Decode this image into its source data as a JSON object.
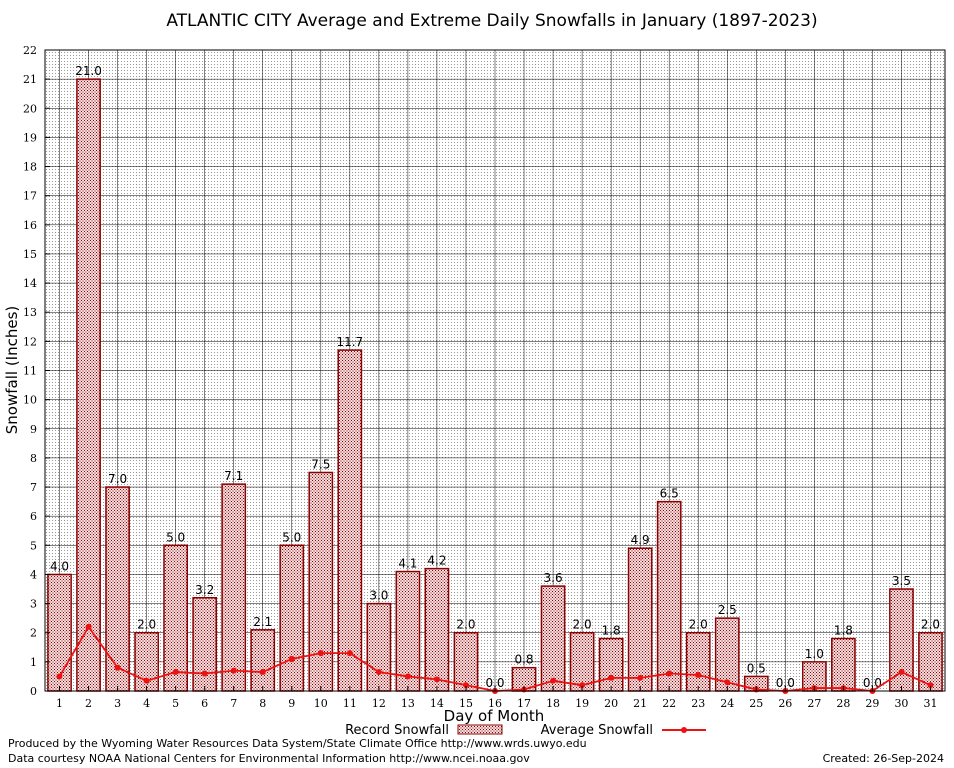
{
  "chart_data": {
    "type": "bar",
    "title": "ATLANTIC CITY Average and Extreme Daily Snowfalls in January (1897-2023)",
    "xlabel": "Day of Month",
    "ylabel": "Snowfall (Inches)",
    "ylim": [
      0,
      22
    ],
    "grid": true,
    "categories": [
      "1",
      "2",
      "3",
      "4",
      "5",
      "6",
      "7",
      "8",
      "9",
      "10",
      "11",
      "12",
      "13",
      "14",
      "15",
      "16",
      "17",
      "18",
      "19",
      "20",
      "21",
      "22",
      "23",
      "24",
      "25",
      "26",
      "27",
      "28",
      "29",
      "30",
      "31"
    ],
    "series": [
      {
        "name": "Record Snowfall",
        "type": "bar",
        "color": "#8b0000",
        "values": [
          4.0,
          21.0,
          7.0,
          2.0,
          5.0,
          3.2,
          7.1,
          2.1,
          5.0,
          7.5,
          11.7,
          3.0,
          4.1,
          4.2,
          2.0,
          0.0,
          0.8,
          3.6,
          2.0,
          1.8,
          4.9,
          6.5,
          2.0,
          2.5,
          0.5,
          0.0,
          1.0,
          1.8,
          0.0,
          3.5,
          2.0
        ],
        "labels": [
          "4.0",
          "21.0",
          "7.0",
          "2.0",
          "5.0",
          "3.2",
          "7.1",
          "2.1",
          "5.0",
          "7.5",
          "11.7",
          "3.0",
          "4.1",
          "4.2",
          "2.0",
          "0.0",
          "0.8",
          "3.6",
          "2.0",
          "1.8",
          "4.9",
          "6.5",
          "2.0",
          "2.5",
          "0.5",
          "0.0",
          "1.0",
          "1.8",
          "0.0",
          "3.5",
          "2.0"
        ]
      },
      {
        "name": "Average Snowfall",
        "type": "line",
        "color": "#ee1111",
        "values": [
          0.5,
          2.2,
          0.8,
          0.35,
          0.65,
          0.6,
          0.7,
          0.65,
          1.1,
          1.3,
          1.3,
          0.65,
          0.5,
          0.4,
          0.2,
          0.0,
          0.05,
          0.35,
          0.2,
          0.45,
          0.45,
          0.6,
          0.55,
          0.3,
          0.05,
          0.0,
          0.1,
          0.1,
          0.0,
          0.65,
          0.2
        ]
      }
    ],
    "y_ticks": [
      "0",
      "1",
      "2",
      "3",
      "4",
      "5",
      "6",
      "7",
      "8",
      "9",
      "10",
      "11",
      "12",
      "13",
      "14",
      "15",
      "16",
      "17",
      "18",
      "19",
      "20",
      "21",
      "22"
    ],
    "legend_position": "bottom-center"
  },
  "footer": {
    "producer": "Produced by the Wyoming Water Resources Data System/State Climate Office http://www.wrds.uwyo.edu",
    "courtesy": "Data courtesy NOAA National Centers for Environmental Information http://www.ncei.noaa.gov",
    "created": "Created: 26-Sep-2024"
  }
}
